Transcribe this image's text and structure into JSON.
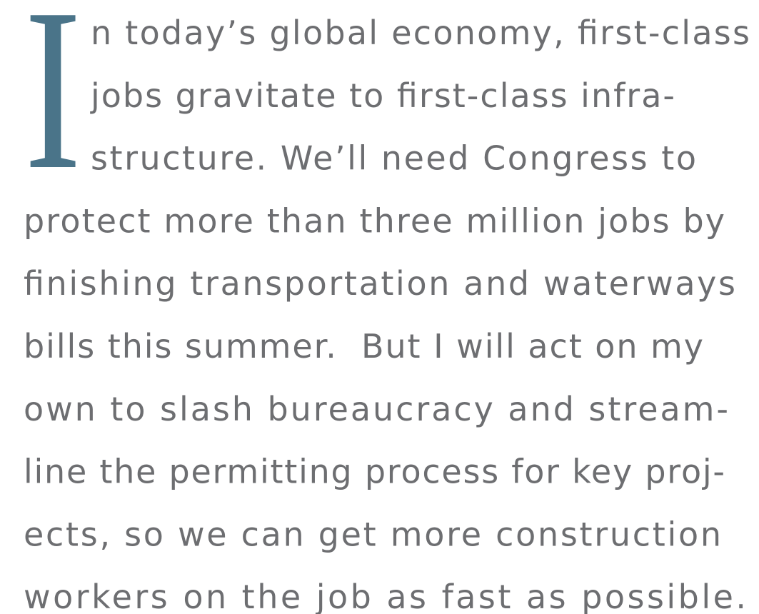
{
  "drop_cap": "I",
  "lines": [
    "n today’s global economy, first-class",
    "jobs gravitate to first-class infra-",
    "structure. We’ll need Congress to",
    "protect more than three million jobs by",
    "finishing transportation and waterways",
    "bills this summer.  But I will act on my",
    "own to slash bureaucracy and stream-",
    "line the permitting process for key proj-",
    "ects, so we can get more construction",
    "workers on the job as fast as possible."
  ]
}
